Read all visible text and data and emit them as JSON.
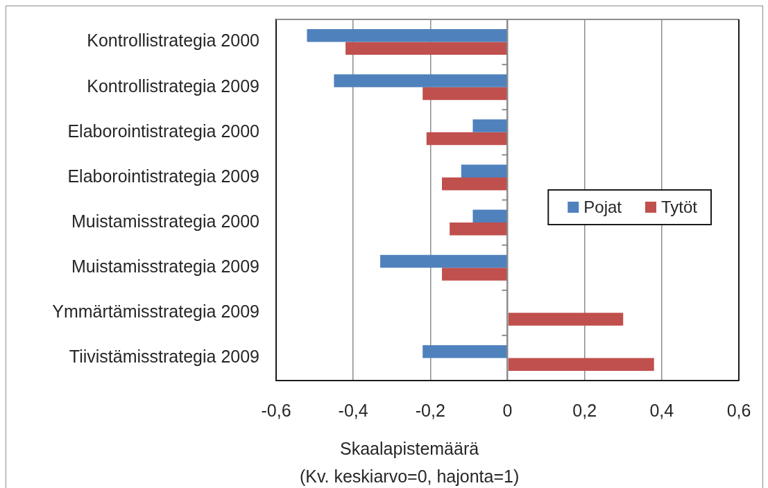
{
  "chart_data": {
    "type": "bar",
    "orientation": "horizontal",
    "xlabel": "Skaalapistemäärä\n(Kv. keskiarvo=0, hajonta=1)",
    "categories": [
      "Kontrollistrategia 2000",
      "Kontrollistrategia 2009",
      "Elaborointistrategia 2000",
      "Elaborointistrategia 2009",
      "Muistamisstrategia 2000",
      "Muistamisstrategia 2009",
      "Ymmärtämisstrategia 2009",
      "Tiivistämisstrategia 2009"
    ],
    "series": [
      {
        "name": "Pojat",
        "color": "#4f81bd",
        "values": [
          -0.52,
          -0.45,
          -0.09,
          -0.12,
          -0.09,
          -0.33,
          null,
          -0.22
        ]
      },
      {
        "name": "Tytöt",
        "color": "#c0504d",
        "values": [
          -0.42,
          -0.22,
          -0.21,
          -0.17,
          -0.15,
          -0.17,
          0.3,
          0.38
        ]
      }
    ],
    "xlim": [
      -0.6,
      0.6
    ],
    "xticks": [
      {
        "value": -0.6,
        "label": "-0,6"
      },
      {
        "value": -0.4,
        "label": "-0,4"
      },
      {
        "value": -0.2,
        "label": "-0,2"
      },
      0,
      {
        "value": 0.2,
        "label": "0,2"
      },
      {
        "value": 0.4,
        "label": "0,4"
      },
      {
        "value": 0.6,
        "label": "0,6"
      }
    ],
    "grid": "x",
    "legend": "right"
  }
}
